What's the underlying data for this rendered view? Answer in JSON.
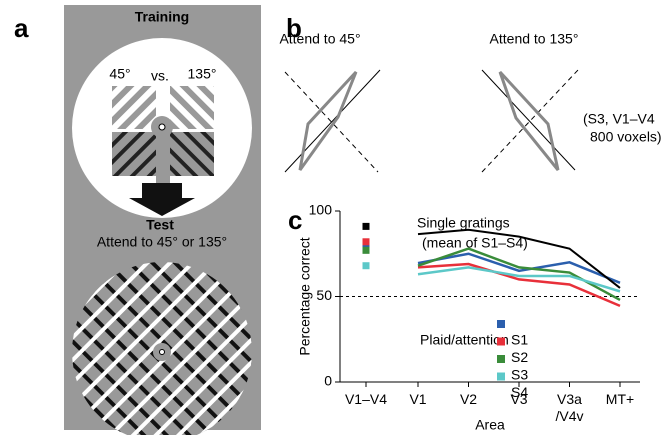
{
  "panel_labels": [
    "a",
    "b",
    "c"
  ],
  "panel_a": {
    "training_title": "Training",
    "left_orientation": "45°",
    "versus": "vs.",
    "right_orientation": "135°",
    "test_title": "Test",
    "test_instruction": "Attend to 45° or 135°"
  },
  "panel_b": {
    "left_title": "Attend to 45°",
    "right_title": "Attend to 135°",
    "note_lines": [
      "(S3, V1–V4",
      "800 voxels)"
    ]
  },
  "chart_data": {
    "type": "line",
    "ylabel": "Percentage correct",
    "xlabel": "Area",
    "categories": [
      "V1–V4",
      "V1",
      "V2",
      "V3",
      "V3a\n/V4v",
      "MT+"
    ],
    "ylim": [
      0,
      100
    ],
    "yticks": [
      0,
      50,
      100
    ],
    "chance_line": 50,
    "single_gratings": {
      "label_lines": [
        "Single gratings",
        "(mean of S1–S4)"
      ],
      "color": "#000000",
      "values": [
        91,
        86.5,
        89,
        85,
        78,
        55
      ]
    },
    "series_annotation": "Plaid/attention",
    "series": [
      {
        "name": "S1",
        "color": "#2b5fad",
        "values": [
          80,
          69.5,
          75,
          65,
          70,
          58
        ]
      },
      {
        "name": "S2",
        "color": "#e8303a",
        "values": [
          82,
          67,
          69,
          60,
          57,
          44.5
        ]
      },
      {
        "name": "S3",
        "color": "#3a8c3a",
        "values": [
          77,
          68,
          78,
          67,
          64,
          48
        ]
      },
      {
        "name": "S4",
        "color": "#5cc8c8",
        "values": [
          68,
          63,
          67,
          62,
          62,
          53
        ]
      }
    ]
  }
}
